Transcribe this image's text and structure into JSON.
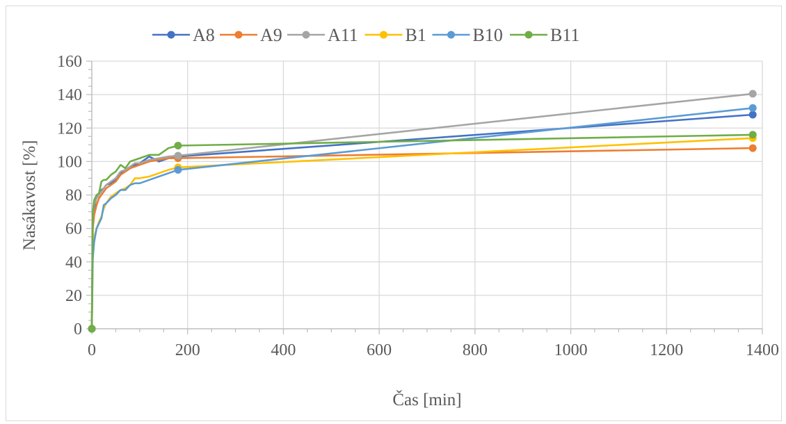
{
  "chart_data": {
    "type": "line",
    "title": "",
    "xlabel": "Čas [min]",
    "ylabel": "Nasákavost [%]",
    "xlim": [
      0,
      1400
    ],
    "ylim": [
      0,
      160
    ],
    "xticks": [
      0,
      200,
      400,
      600,
      800,
      1000,
      1200,
      1400
    ],
    "yticks": [
      0,
      20,
      40,
      60,
      80,
      100,
      120,
      140,
      160
    ],
    "grid": true,
    "legend_position": "top",
    "series": [
      {
        "name": "A8",
        "color": "#4472c4",
        "points": [
          [
            0,
            0
          ],
          [
            2,
            65
          ],
          [
            5,
            72
          ],
          [
            10,
            79
          ],
          [
            15,
            81
          ],
          [
            20,
            83
          ],
          [
            25,
            84
          ],
          [
            30,
            86
          ],
          [
            40,
            87
          ],
          [
            50,
            89
          ],
          [
            60,
            93
          ],
          [
            70,
            94
          ],
          [
            80,
            96
          ],
          [
            90,
            98
          ],
          [
            100,
            99
          ],
          [
            110,
            101
          ],
          [
            120,
            103
          ],
          [
            140,
            100
          ],
          [
            160,
            102
          ],
          [
            180,
            103
          ],
          [
            1380,
            128
          ]
        ],
        "markers": [
          [
            0,
            0
          ],
          [
            180,
            103
          ],
          [
            1380,
            128
          ]
        ]
      },
      {
        "name": "A9",
        "color": "#ed7d31",
        "points": [
          [
            0,
            0
          ],
          [
            2,
            60
          ],
          [
            5,
            68
          ],
          [
            10,
            74
          ],
          [
            15,
            78
          ],
          [
            20,
            80
          ],
          [
            25,
            82
          ],
          [
            30,
            84
          ],
          [
            40,
            86
          ],
          [
            50,
            88
          ],
          [
            60,
            92
          ],
          [
            70,
            94
          ],
          [
            80,
            96
          ],
          [
            90,
            97
          ],
          [
            100,
            98
          ],
          [
            120,
            100
          ],
          [
            140,
            101
          ],
          [
            160,
            102
          ],
          [
            180,
            102
          ],
          [
            1380,
            108
          ]
        ],
        "markers": [
          [
            0,
            0
          ],
          [
            180,
            102
          ],
          [
            1380,
            108
          ]
        ]
      },
      {
        "name": "A11",
        "color": "#a5a5a5",
        "points": [
          [
            0,
            0
          ],
          [
            2,
            68
          ],
          [
            5,
            74
          ],
          [
            10,
            78
          ],
          [
            15,
            80
          ],
          [
            20,
            82
          ],
          [
            25,
            84
          ],
          [
            30,
            86
          ],
          [
            40,
            88
          ],
          [
            50,
            90
          ],
          [
            60,
            94
          ],
          [
            70,
            95
          ],
          [
            80,
            97
          ],
          [
            90,
            99
          ],
          [
            100,
            99
          ],
          [
            120,
            101
          ],
          [
            140,
            102
          ],
          [
            160,
            103
          ],
          [
            180,
            103.5
          ],
          [
            1380,
            140.5
          ]
        ],
        "markers": [
          [
            0,
            0
          ],
          [
            180,
            103.5
          ],
          [
            1380,
            140.5
          ]
        ]
      },
      {
        "name": "B1",
        "color": "#ffc000",
        "points": [
          [
            0,
            0
          ],
          [
            2,
            45
          ],
          [
            5,
            55
          ],
          [
            10,
            60
          ],
          [
            15,
            64
          ],
          [
            20,
            67
          ],
          [
            25,
            72
          ],
          [
            30,
            75
          ],
          [
            40,
            79
          ],
          [
            50,
            81
          ],
          [
            60,
            83
          ],
          [
            70,
            84
          ],
          [
            80,
            86
          ],
          [
            90,
            90
          ],
          [
            100,
            90
          ],
          [
            120,
            91
          ],
          [
            140,
            93
          ],
          [
            160,
            95
          ],
          [
            180,
            96.5
          ],
          [
            1380,
            114
          ]
        ],
        "markers": [
          [
            0,
            0
          ],
          [
            180,
            96.5
          ],
          [
            1380,
            114
          ]
        ]
      },
      {
        "name": "B10",
        "color": "#5b9bd5",
        "points": [
          [
            0,
            0
          ],
          [
            2,
            42
          ],
          [
            5,
            52
          ],
          [
            10,
            60
          ],
          [
            15,
            63
          ],
          [
            20,
            66
          ],
          [
            25,
            74
          ],
          [
            30,
            75
          ],
          [
            40,
            78
          ],
          [
            50,
            80
          ],
          [
            60,
            83
          ],
          [
            70,
            83
          ],
          [
            80,
            86
          ],
          [
            90,
            87
          ],
          [
            100,
            87
          ],
          [
            120,
            89
          ],
          [
            140,
            91
          ],
          [
            160,
            93
          ],
          [
            180,
            95
          ],
          [
            1380,
            132
          ]
        ],
        "markers": [
          [
            0,
            0
          ],
          [
            180,
            95
          ],
          [
            1380,
            132
          ]
        ]
      },
      {
        "name": "B11",
        "color": "#70ad47",
        "points": [
          [
            0,
            0
          ],
          [
            2,
            70
          ],
          [
            5,
            77
          ],
          [
            10,
            80
          ],
          [
            15,
            81
          ],
          [
            20,
            88
          ],
          [
            25,
            89
          ],
          [
            30,
            89
          ],
          [
            40,
            92
          ],
          [
            50,
            94
          ],
          [
            60,
            98
          ],
          [
            70,
            96
          ],
          [
            80,
            100
          ],
          [
            90,
            101
          ],
          [
            100,
            102
          ],
          [
            120,
            104
          ],
          [
            140,
            104
          ],
          [
            160,
            108
          ],
          [
            180,
            109.5
          ],
          [
            1380,
            116
          ]
        ],
        "markers": [
          [
            0,
            0
          ],
          [
            180,
            109.5
          ],
          [
            1380,
            116
          ]
        ]
      }
    ]
  }
}
